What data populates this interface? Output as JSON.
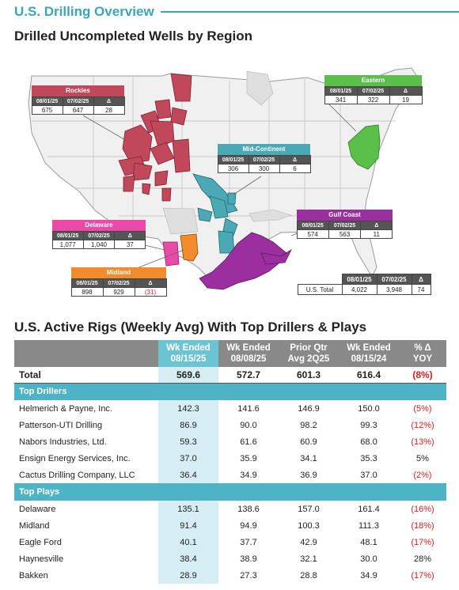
{
  "header": {
    "title": "U.S. Drilling Overview",
    "map_section_title": "Drilled Uncompleted Wells by Region",
    "rigs_section_title": "U.S. Active Rigs (Weekly Avg) With Top Drillers & Plays"
  },
  "colors": {
    "accent": "#3aa6b9",
    "rockies": "#c0485a",
    "eastern": "#5ac04a",
    "mid_continent": "#4aa9b4",
    "gulf_coast": "#9b2fa0",
    "delaware": "#e94aa8",
    "midland": "#f28b2c",
    "negative": "#d62020"
  },
  "map": {
    "regions": {
      "rockies": {
        "name": "Rockies",
        "d1": "08/01/25",
        "d2": "07/02/25",
        "delta_label": "Δ",
        "v1": "675",
        "v2": "647",
        "delta": "28"
      },
      "eastern": {
        "name": "Eastern",
        "d1": "08/01/25",
        "d2": "07/02/25",
        "delta_label": "Δ",
        "v1": "341",
        "v2": "322",
        "delta": "19"
      },
      "mid_continent": {
        "name": "Mid-Continent",
        "d1": "08/01/25",
        "d2": "07/02/25",
        "delta_label": "Δ",
        "v1": "306",
        "v2": "300",
        "delta": "6"
      },
      "gulf_coast": {
        "name": "Gulf Coast",
        "d1": "08/01/25",
        "d2": "07/02/25",
        "delta_label": "Δ",
        "v1": "574",
        "v2": "563",
        "delta": "11"
      },
      "delaware": {
        "name": "Delaware",
        "d1": "08/01/25",
        "d2": "07/02/25",
        "delta_label": "Δ",
        "v1": "1,077",
        "v2": "1,040",
        "delta": "37"
      },
      "midland": {
        "name": "Midland",
        "d1": "08/01/25",
        "d2": "07/02/25",
        "delta_label": "Δ",
        "v1": "898",
        "v2": "929",
        "delta": "(31)"
      }
    },
    "total": {
      "label": "U.S. Total",
      "d1": "08/01/25",
      "d2": "07/02/25",
      "delta_label": "Δ",
      "v1": "4,022",
      "v2": "3,948",
      "delta": "74"
    }
  },
  "rigs": {
    "columns": [
      {
        "line1": "Wk Ended",
        "line2": "08/15/25"
      },
      {
        "line1": "Wk Ended",
        "line2": "08/08/25"
      },
      {
        "line1": "Prior Qtr",
        "line2": "Avg 2Q25"
      },
      {
        "line1": "Wk Ended",
        "line2": "08/15/24"
      },
      {
        "line1": "% Δ",
        "line2": "YOY"
      }
    ],
    "total": {
      "label": "Total",
      "values": [
        "569.6",
        "572.7",
        "601.3",
        "616.4",
        "(8%)"
      ]
    },
    "groups": [
      {
        "title": "Top Drillers",
        "rows": [
          {
            "label": "Helmerich & Payne, Inc.",
            "values": [
              "142.3",
              "141.6",
              "146.9",
              "150.0",
              "(5%)"
            ]
          },
          {
            "label": "Patterson-UTI Drilling",
            "values": [
              "86.9",
              "90.0",
              "98.2",
              "99.3",
              "(12%)"
            ]
          },
          {
            "label": "Nabors Industries, Ltd.",
            "values": [
              "59.3",
              "61.6",
              "60.9",
              "68.0",
              "(13%)"
            ]
          },
          {
            "label": "Ensign Energy Services, Inc.",
            "values": [
              "37.0",
              "35.9",
              "34.1",
              "35.3",
              "5%"
            ]
          },
          {
            "label": "Cactus Drilling Company, LLC",
            "values": [
              "36.4",
              "34.9",
              "36.9",
              "37.0",
              "(2%)"
            ]
          }
        ]
      },
      {
        "title": "Top Plays",
        "rows": [
          {
            "label": "Delaware",
            "values": [
              "135.1",
              "138.6",
              "157.0",
              "161.4",
              "(16%)"
            ]
          },
          {
            "label": "Midland",
            "values": [
              "91.4",
              "94.9",
              "100.3",
              "111.3",
              "(18%)"
            ]
          },
          {
            "label": "Eagle Ford",
            "values": [
              "40.1",
              "37.7",
              "42.9",
              "48.1",
              "(17%)"
            ]
          },
          {
            "label": "Haynesville",
            "values": [
              "38.4",
              "38.9",
              "32.1",
              "30.0",
              "28%"
            ]
          },
          {
            "label": "Bakken",
            "values": [
              "28.9",
              "27.3",
              "28.8",
              "34.9",
              "(17%)"
            ]
          }
        ]
      }
    ]
  }
}
